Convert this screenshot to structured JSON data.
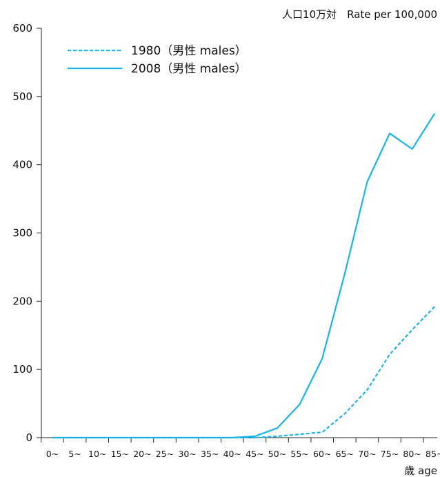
{
  "chart_data": {
    "type": "line",
    "ylabel": "人口10万対　Rate per 100,000",
    "xlabel": "歳 age",
    "ylim": [
      0,
      600
    ],
    "yticks": [
      0,
      100,
      200,
      300,
      400,
      500,
      600
    ],
    "categories": [
      "0~",
      "5~",
      "10~",
      "15~",
      "20~",
      "25~",
      "30~",
      "35~",
      "40~",
      "45~",
      "50~",
      "55~",
      "60~",
      "65~",
      "70~",
      "75~",
      "80~",
      "85~"
    ],
    "grid": false,
    "legend_position": "top-left",
    "series": [
      {
        "name": "1980（男性 males）",
        "style": "dashed",
        "color": "#1bb3e6",
        "values": [
          0,
          0,
          0,
          0,
          0,
          0,
          0,
          0,
          0,
          0,
          2,
          5,
          8,
          35,
          70,
          122,
          158,
          192
        ]
      },
      {
        "name": "2008（男性 males）",
        "style": "solid",
        "color": "#1bb3e6",
        "values": [
          0,
          0,
          0,
          0,
          0,
          0,
          0,
          0,
          0,
          2,
          14,
          49,
          116,
          240,
          375,
          446,
          423,
          475
        ]
      }
    ]
  }
}
